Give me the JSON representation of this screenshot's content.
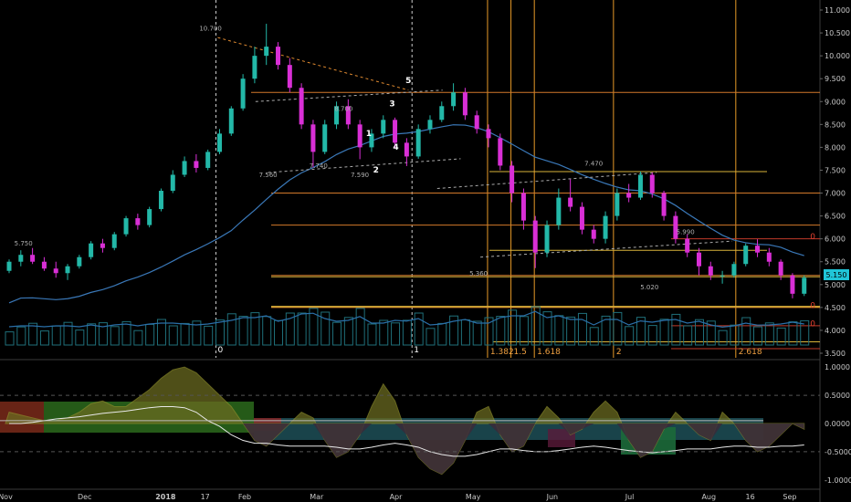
{
  "chart_data": [
    {
      "type": "candlestick",
      "title": "",
      "xlabel": "",
      "ylabel": "",
      "ylim": [
        3.4,
        11.1
      ],
      "y_ticks": [
        "3.500",
        "4.000",
        "4.500",
        "5.000",
        "5.500",
        "6.000",
        "6.500",
        "7.000",
        "7.500",
        "8.000",
        "8.500",
        "9.000",
        "9.500",
        "10.000",
        "10.500",
        "11.000"
      ],
      "x_ticks": [
        {
          "label": "Nov",
          "week": 0
        },
        {
          "label": "Dec",
          "week": 4.4
        },
        {
          "label": "2018",
          "week": 8.9
        },
        {
          "label": "17",
          "week": 11.1
        },
        {
          "label": "Feb",
          "week": 13.3
        },
        {
          "label": "Mar",
          "week": 17.3
        },
        {
          "label": "Apr",
          "week": 21.7
        },
        {
          "label": "May",
          "week": 26
        },
        {
          "label": "Jun",
          "week": 30.4
        },
        {
          "label": "Jul",
          "week": 34.7
        },
        {
          "label": "Aug",
          "week": 39.1
        },
        {
          "label": "16",
          "week": 41.4
        },
        {
          "label": "Sep",
          "week": 43.6
        }
      ],
      "last_price": "5.150",
      "price_labels": [
        {
          "text": "10.700",
          "week": 11.4,
          "price": 10.55
        },
        {
          "text": "5.750",
          "week": 1,
          "price": 5.85
        },
        {
          "text": "7.560",
          "week": 14.6,
          "price": 7.35
        },
        {
          "text": "7.740",
          "week": 17.4,
          "price": 7.55
        },
        {
          "text": "8.700",
          "week": 18.8,
          "price": 8.8
        },
        {
          "text": "7.590",
          "week": 19.7,
          "price": 7.35
        },
        {
          "text": "5.360",
          "week": 26.3,
          "price": 5.2
        },
        {
          "text": "7.470",
          "week": 32.7,
          "price": 7.6
        },
        {
          "text": "5.990",
          "week": 37.8,
          "price": 6.1
        },
        {
          "text": "5.020",
          "week": 35.8,
          "price": 4.9
        }
      ],
      "wave_labels": [
        {
          "text": "1",
          "week": 20.2,
          "price": 8.25
        },
        {
          "text": "2",
          "week": 20.6,
          "price": 7.45
        },
        {
          "text": "3",
          "week": 21.5,
          "price": 8.9
        },
        {
          "text": "4",
          "week": 21.7,
          "price": 7.95
        },
        {
          "text": "5",
          "week": 22.4,
          "price": 9.4
        }
      ],
      "cycle_labels": [
        {
          "text": "0",
          "week": 11.7
        },
        {
          "text": "1",
          "week": 22.6
        }
      ],
      "fib_time_labels": [
        {
          "text": "1.382",
          "week": 26.9
        },
        {
          "text": "1.5",
          "week": 28.2
        },
        {
          "text": "1.618",
          "week": 29.5
        },
        {
          "text": "2",
          "week": 33.9
        },
        {
          "text": "2.618",
          "week": 40.7
        }
      ],
      "fib_time_weeks": [
        26.8,
        28.1,
        29.4,
        33.8,
        40.6
      ],
      "right_level_labels": [
        "0",
        "0",
        "0"
      ],
      "horizontal_levels": [
        9.2,
        7.0,
        6.3,
        5.2,
        4.5
      ],
      "candles": [
        [
          5.3,
          5.55,
          5.25,
          5.5
        ],
        [
          5.5,
          5.75,
          5.4,
          5.65
        ],
        [
          5.65,
          5.8,
          5.45,
          5.5
        ],
        [
          5.5,
          5.6,
          5.3,
          5.35
        ],
        [
          5.35,
          5.5,
          5.15,
          5.25
        ],
        [
          5.25,
          5.45,
          5.1,
          5.4
        ],
        [
          5.4,
          5.65,
          5.35,
          5.6
        ],
        [
          5.6,
          5.95,
          5.55,
          5.9
        ],
        [
          5.9,
          6.0,
          5.7,
          5.8
        ],
        [
          5.8,
          6.15,
          5.75,
          6.1
        ],
        [
          6.1,
          6.5,
          6.05,
          6.45
        ],
        [
          6.45,
          6.55,
          6.2,
          6.3
        ],
        [
          6.3,
          6.7,
          6.25,
          6.65
        ],
        [
          6.65,
          7.1,
          6.6,
          7.05
        ],
        [
          7.05,
          7.5,
          7.0,
          7.4
        ],
        [
          7.4,
          7.8,
          7.35,
          7.7
        ],
        [
          7.7,
          7.85,
          7.45,
          7.55
        ],
        [
          7.55,
          7.95,
          7.5,
          7.9
        ],
        [
          7.9,
          8.4,
          7.85,
          8.3
        ],
        [
          8.3,
          8.9,
          8.25,
          8.85
        ],
        [
          8.85,
          9.6,
          8.8,
          9.5
        ],
        [
          9.5,
          10.2,
          9.4,
          10.0
        ],
        [
          10.0,
          10.7,
          9.8,
          10.2
        ],
        [
          10.2,
          10.3,
          9.7,
          9.8
        ],
        [
          9.8,
          9.95,
          9.2,
          9.3
        ],
        [
          9.3,
          9.4,
          8.4,
          8.5
        ],
        [
          8.5,
          8.6,
          7.56,
          7.9
        ],
        [
          7.9,
          8.6,
          7.85,
          8.5
        ],
        [
          8.5,
          9.0,
          8.4,
          8.9
        ],
        [
          8.9,
          9.05,
          8.4,
          8.5
        ],
        [
          8.5,
          8.6,
          7.74,
          8.0
        ],
        [
          8.0,
          8.4,
          7.9,
          8.3
        ],
        [
          8.3,
          8.7,
          8.2,
          8.6
        ],
        [
          8.6,
          8.65,
          8.0,
          8.1
        ],
        [
          8.1,
          8.2,
          7.59,
          7.8
        ],
        [
          7.8,
          8.5,
          7.75,
          8.4
        ],
        [
          8.4,
          8.7,
          8.3,
          8.6
        ],
        [
          8.6,
          9.0,
          8.55,
          8.9
        ],
        [
          8.9,
          9.4,
          8.8,
          9.2
        ],
        [
          9.2,
          9.3,
          8.6,
          8.7
        ],
        [
          8.7,
          8.8,
          8.3,
          8.4
        ],
        [
          8.4,
          8.5,
          8.0,
          8.2
        ],
        [
          8.2,
          8.3,
          7.5,
          7.6
        ],
        [
          7.6,
          7.7,
          6.8,
          7.0
        ],
        [
          7.0,
          7.1,
          6.2,
          6.4
        ],
        [
          6.4,
          6.5,
          5.36,
          5.7
        ],
        [
          5.7,
          6.4,
          5.6,
          6.3
        ],
        [
          6.3,
          7.1,
          6.2,
          6.9
        ],
        [
          6.9,
          7.3,
          6.6,
          6.7
        ],
        [
          6.7,
          6.8,
          6.1,
          6.2
        ],
        [
          6.2,
          6.3,
          5.9,
          6.0
        ],
        [
          6.0,
          6.6,
          5.9,
          6.5
        ],
        [
          6.5,
          7.1,
          6.4,
          7.0
        ],
        [
          7.0,
          7.2,
          6.8,
          6.9
        ],
        [
          6.9,
          7.47,
          6.85,
          7.4
        ],
        [
          7.4,
          7.45,
          6.9,
          7.0
        ],
        [
          7.0,
          7.05,
          6.4,
          6.5
        ],
        [
          6.5,
          6.6,
          5.9,
          6.0
        ],
        [
          6.0,
          6.1,
          5.6,
          5.7
        ],
        [
          5.7,
          5.8,
          5.2,
          5.4
        ],
        [
          5.4,
          5.5,
          5.1,
          5.2
        ],
        [
          5.2,
          5.3,
          5.02,
          5.2
        ],
        [
          5.2,
          5.5,
          5.15,
          5.45
        ],
        [
          5.45,
          5.9,
          5.4,
          5.85
        ],
        [
          5.85,
          5.99,
          5.6,
          5.7
        ],
        [
          5.7,
          5.8,
          5.4,
          5.5
        ],
        [
          5.5,
          5.55,
          5.1,
          5.2
        ],
        [
          5.2,
          5.25,
          4.7,
          4.8
        ],
        [
          4.8,
          5.2,
          4.75,
          5.15
        ]
      ]
    },
    {
      "type": "area",
      "ylim": [
        -1.1,
        1.1
      ],
      "y_ticks": [
        "1.0000",
        "0.5000",
        "0.0000",
        "-0.5000",
        "-1.0000"
      ],
      "series": [
        {
          "values": [
            0.2,
            0.15,
            0.1,
            0.05,
            0.05,
            0.1,
            0.2,
            0.35,
            0.4,
            0.3,
            0.3,
            0.45,
            0.6,
            0.8,
            0.95,
            1.0,
            0.9,
            0.7,
            0.5,
            0.3,
            0.0,
            -0.3,
            -0.4,
            -0.2,
            0.0,
            0.2,
            0.1,
            -0.3,
            -0.6,
            -0.5,
            -0.2,
            0.3,
            0.7,
            0.4,
            -0.2,
            -0.6,
            -0.8,
            -0.9,
            -0.7,
            -0.3,
            0.2,
            0.3,
            -0.2,
            -0.5,
            -0.4,
            0.0,
            0.3,
            0.1,
            -0.2,
            -0.1,
            0.2,
            0.4,
            0.2,
            -0.3,
            -0.6,
            -0.5,
            -0.1,
            0.2,
            0.0,
            -0.2,
            -0.3,
            0.2,
            0.0,
            -0.3,
            -0.5,
            -0.4,
            -0.2,
            0.0,
            -0.1
          ]
        },
        {
          "values": [
            0.0,
            0.0,
            0.02,
            0.05,
            0.08,
            0.1,
            0.12,
            0.15,
            0.18,
            0.2,
            0.22,
            0.25,
            0.28,
            0.3,
            0.3,
            0.28,
            0.2,
            0.05,
            -0.05,
            -0.2,
            -0.3,
            -0.35,
            -0.35,
            -0.38,
            -0.4,
            -0.4,
            -0.4,
            -0.4,
            -0.42,
            -0.45,
            -0.45,
            -0.42,
            -0.38,
            -0.35,
            -0.38,
            -0.42,
            -0.5,
            -0.55,
            -0.58,
            -0.58,
            -0.55,
            -0.5,
            -0.45,
            -0.45,
            -0.48,
            -0.5,
            -0.5,
            -0.48,
            -0.45,
            -0.42,
            -0.4,
            -0.42,
            -0.45,
            -0.48,
            -0.5,
            -0.52,
            -0.5,
            -0.48,
            -0.45,
            -0.45,
            -0.45,
            -0.42,
            -0.4,
            -0.4,
            -0.42,
            -0.42,
            -0.4,
            -0.4,
            -0.38
          ]
        }
      ]
    }
  ]
}
